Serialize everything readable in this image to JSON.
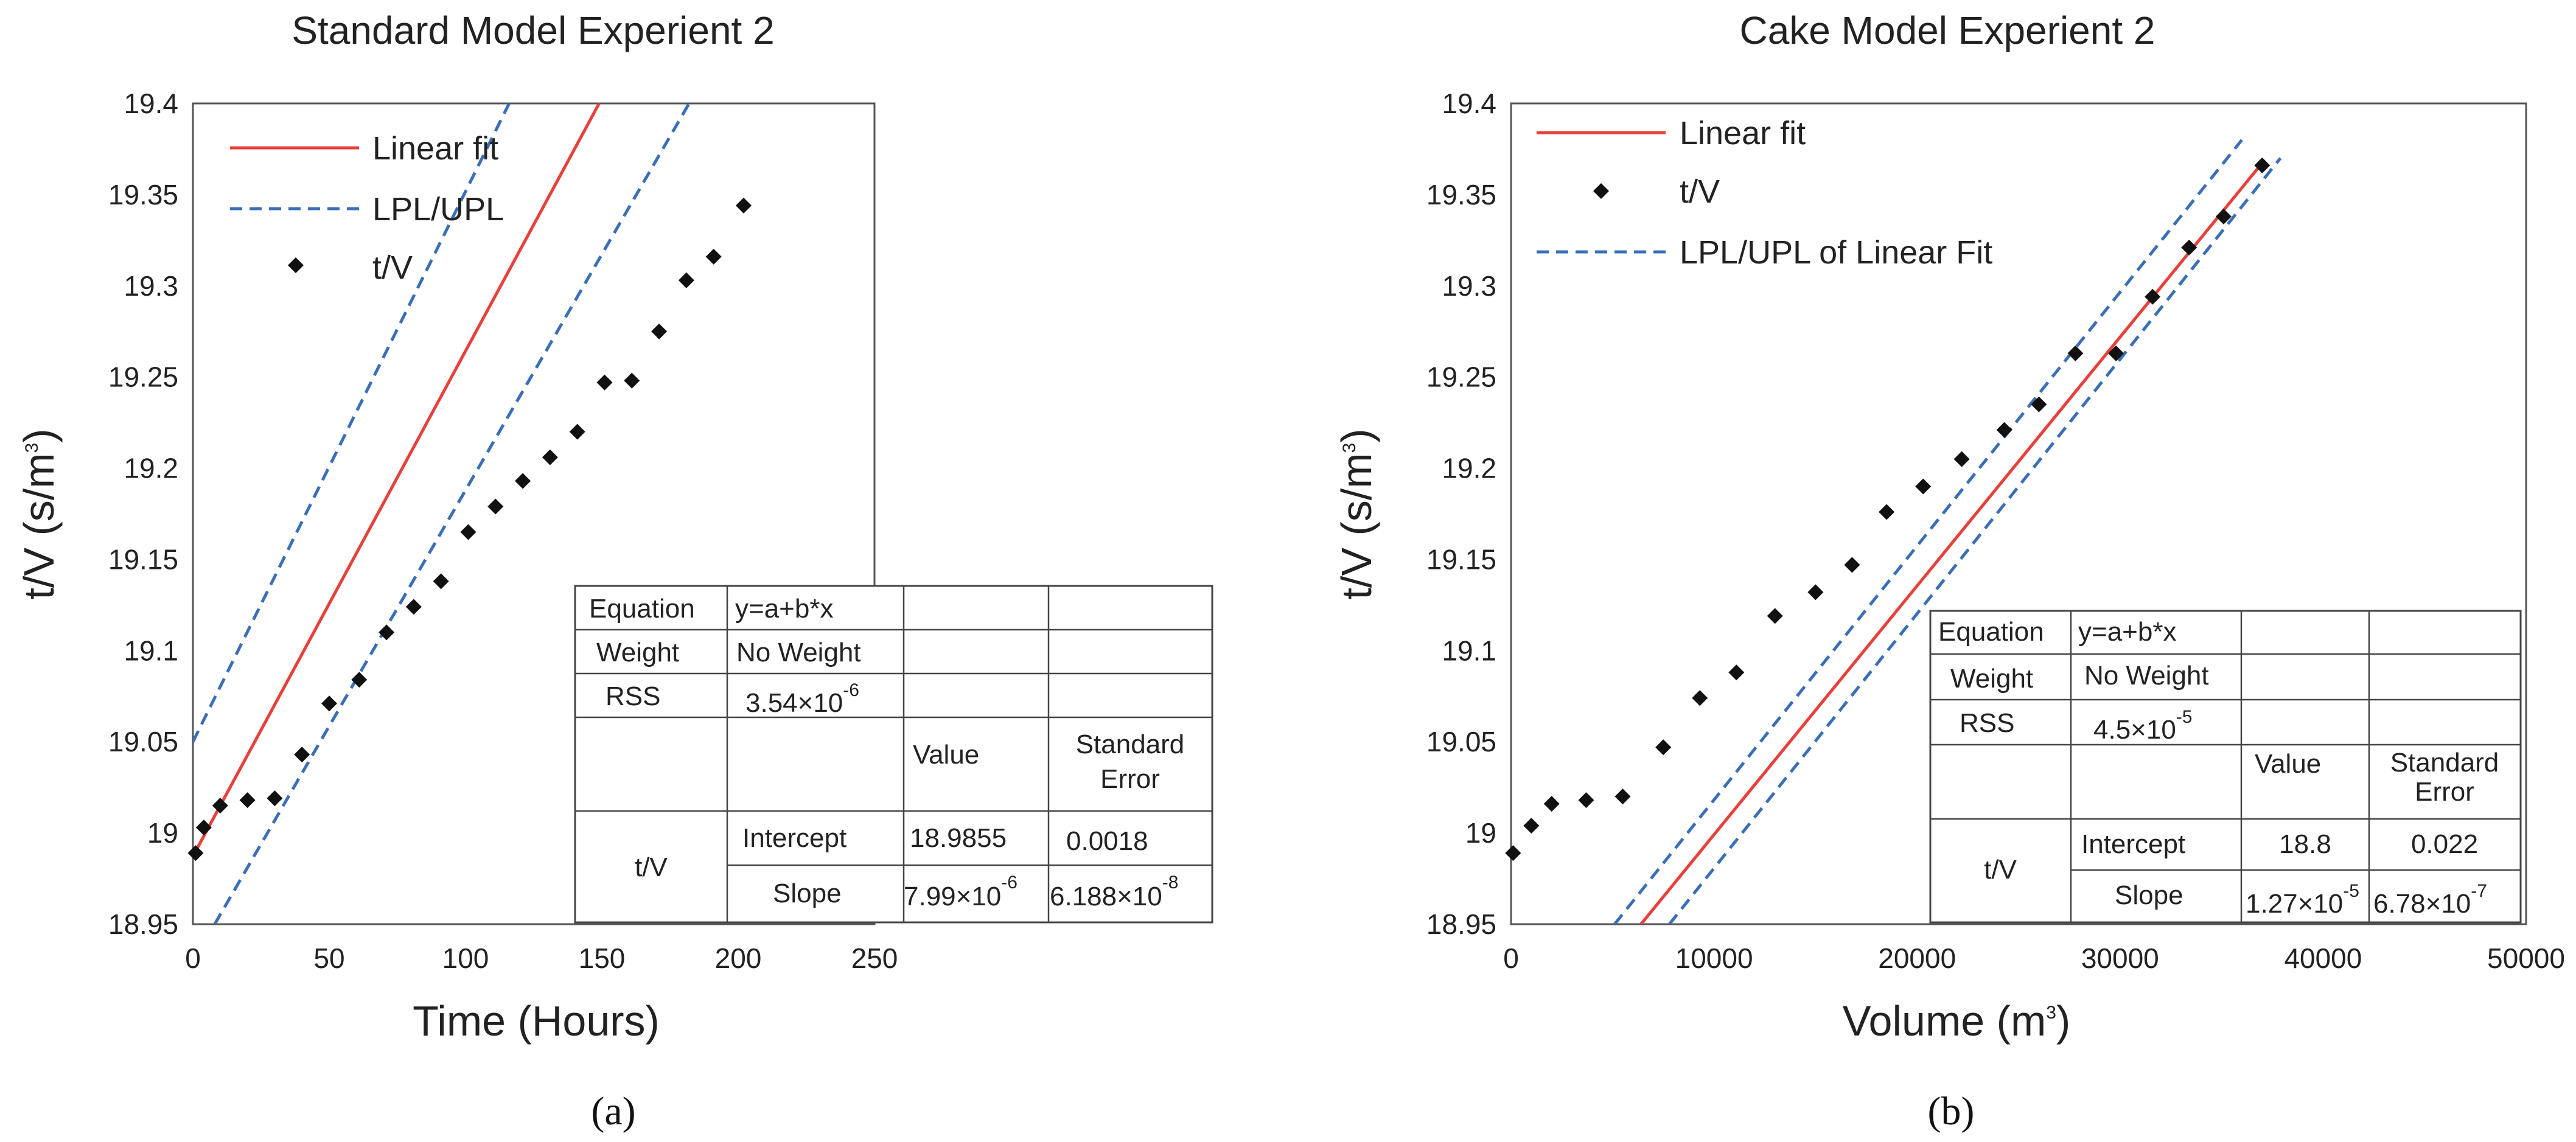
{
  "chart_data": [
    {
      "type": "scatter",
      "panel_label": "(a)",
      "title": "Standard Model Experient 2",
      "xlabel": "Time  (Hours)",
      "ylabel": "t/V  (s/m",
      "ylabel_sup": "3",
      "ylabel_close": ")",
      "xlim": [
        0,
        250
      ],
      "ylim": [
        18.95,
        19.4
      ],
      "xticks": [
        0,
        50,
        100,
        150,
        200,
        250
      ],
      "xtick_labels": [
        "0",
        "50",
        "100",
        "150",
        "200",
        "250"
      ],
      "yticks": [
        18.95,
        19.0,
        19.05,
        19.1,
        19.15,
        19.2,
        19.25,
        19.3,
        19.35,
        19.4
      ],
      "ytick_labels": [
        "18.95",
        "19",
        "19.05",
        "19.1",
        "19.15",
        "19.2",
        "19.25",
        "19.3",
        "19.35",
        "19.4"
      ],
      "legend": [
        {
          "label": "Linear fit",
          "style": "line",
          "color": "#e8403a"
        },
        {
          "label": "LPL/UPL",
          "style": "dashed",
          "color": "#3a6fb7"
        },
        {
          "label": "t/V",
          "style": "marker",
          "color": "#111111"
        }
      ],
      "series": [
        {
          "name": "t/V",
          "x": [
            1,
            4,
            10,
            20,
            30,
            40,
            50,
            61,
            71,
            81,
            91,
            101,
            111,
            121,
            131,
            141,
            151,
            161,
            171,
            181,
            191,
            202
          ],
          "y": [
            18.989,
            19.003,
            19.015,
            19.018,
            19.019,
            19.043,
            19.071,
            19.084,
            19.11,
            19.124,
            19.138,
            19.165,
            19.179,
            19.193,
            19.206,
            19.22,
            19.247,
            19.248,
            19.275,
            19.303,
            19.316,
            19.344
          ]
        },
        {
          "name": "Linear fit",
          "x": [
            1,
            149
          ],
          "y": [
            18.99,
            19.4
          ]
        },
        {
          "name": "UPL",
          "x": [
            0,
            116
          ],
          "y": [
            19.05,
            19.4
          ]
        },
        {
          "name": "LPL",
          "x": [
            8,
            182
          ],
          "y": [
            18.95,
            19.4
          ]
        }
      ],
      "table": {
        "rows": [
          {
            "c1": "Equation",
            "c2": "y=a+b*x",
            "c3": "",
            "c4": ""
          },
          {
            "c1": "Weight",
            "c2": "No Weight",
            "c3": "",
            "c4": ""
          },
          {
            "c1": "RSS",
            "c2": "3.54×10",
            "c2_sup": "-6",
            "c3": "",
            "c4": ""
          },
          {
            "c1": "",
            "c2": "",
            "c3": "Value",
            "c4": "Standard",
            "c4b": "Error"
          },
          {
            "c1": "t/V",
            "c2": "Intercept",
            "c3": "18.9855",
            "c4": "0.0018"
          },
          {
            "c2": "Slope",
            "c3": "7.99×10",
            "c3_sup": "-6",
            "c4": "6.188×10",
            "c4_sup": "-8"
          }
        ]
      }
    },
    {
      "type": "scatter",
      "panel_label": "(b)",
      "title": "Cake Model Experient 2",
      "xlabel": "Volume  (m",
      "xlabel_sup": "3",
      "xlabel_close": ")",
      "ylabel": "t/V  (s/m",
      "ylabel_sup": "3",
      "ylabel_close": ")",
      "xlim": [
        0,
        50000
      ],
      "ylim": [
        18.95,
        19.4
      ],
      "xticks": [
        0,
        10000,
        20000,
        30000,
        40000,
        50000
      ],
      "xtick_labels": [
        "0",
        "10000",
        "20000",
        "30000",
        "40000",
        "50000"
      ],
      "yticks": [
        18.95,
        19.0,
        19.05,
        19.1,
        19.15,
        19.2,
        19.25,
        19.3,
        19.35,
        19.4
      ],
      "ytick_labels": [
        "18.95",
        "19",
        "19.05",
        "19.1",
        "19.15",
        "19.2",
        "19.25",
        "19.3",
        "19.35",
        "19.4"
      ],
      "legend": [
        {
          "label": "Linear fit",
          "style": "line",
          "color": "#e8403a"
        },
        {
          "label": "t/V",
          "style": "marker",
          "color": "#111111"
        },
        {
          "label": "LPL/UPL of Linear Fit",
          "style": "dashed",
          "color": "#3a6fb7"
        }
      ],
      "series": [
        {
          "name": "t/V",
          "x": [
            100,
            1000,
            2000,
            3700,
            5500,
            7500,
            9300,
            11100,
            13000,
            15000,
            16800,
            18500,
            20300,
            22200,
            24300,
            26000,
            27800,
            29800,
            31600,
            33400,
            35100,
            37000
          ],
          "y": [
            18.989,
            19.004,
            19.016,
            19.018,
            19.02,
            19.047,
            19.074,
            19.088,
            19.119,
            19.132,
            19.147,
            19.176,
            19.19,
            19.205,
            19.221,
            19.235,
            19.263,
            19.263,
            19.294,
            19.321,
            19.338,
            19.366
          ]
        },
        {
          "name": "Linear fit",
          "x": [
            6400,
            36900
          ],
          "y": [
            18.95,
            19.366
          ]
        },
        {
          "name": "UPL",
          "x": [
            5100,
            36000
          ],
          "y": [
            18.95,
            19.38
          ]
        },
        {
          "name": "LPL",
          "x": [
            7800,
            37900
          ],
          "y": [
            18.95,
            19.37
          ]
        }
      ],
      "table": {
        "rows": [
          {
            "c1": "Equation",
            "c2": "y=a+b*x",
            "c3": "",
            "c4": ""
          },
          {
            "c1": "Weight",
            "c2": "No Weight",
            "c3": "",
            "c4": ""
          },
          {
            "c1": "RSS",
            "c2": "4.5×10",
            "c2_sup": "-5",
            "c3": "",
            "c4": ""
          },
          {
            "c1": "",
            "c2": "",
            "c3": "Value",
            "c4": "Standard",
            "c4b": "Error"
          },
          {
            "c1": "t/V",
            "c2": "Intercept",
            "c3": "18.8",
            "c4": "0.022"
          },
          {
            "c2": "Slope",
            "c3": "1.27×10",
            "c3_sup": "-5",
            "c4": "6.78×10",
            "c4_sup": "-7"
          }
        ]
      }
    }
  ]
}
